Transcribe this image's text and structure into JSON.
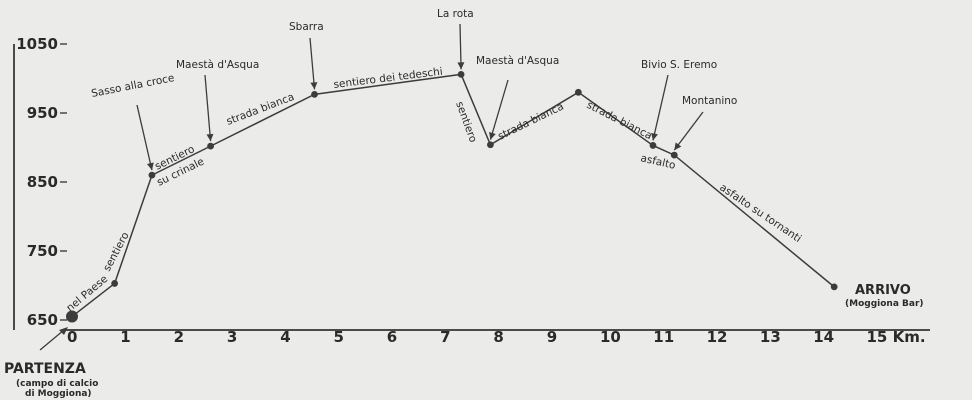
{
  "chart_data": {
    "type": "line",
    "xlabel": "",
    "ylabel": "",
    "x_unit": "Km.",
    "xlim": [
      0,
      15.6
    ],
    "ylim": [
      640,
      1070
    ],
    "x_ticks": [
      "0",
      "1",
      "2",
      "3",
      "4",
      "5",
      "6",
      "7",
      "8",
      "9",
      "10",
      "11",
      "12",
      "13",
      "14",
      "15 Km."
    ],
    "y_ticks": [
      "650",
      "750",
      "850",
      "950",
      "1050"
    ],
    "series": [
      {
        "points": [
          {
            "x": 0.0,
            "y": 655
          },
          {
            "x": 0.8,
            "y": 703
          },
          {
            "x": 1.5,
            "y": 860
          },
          {
            "x": 2.6,
            "y": 902
          },
          {
            "x": 4.55,
            "y": 977
          },
          {
            "x": 7.3,
            "y": 1006
          },
          {
            "x": 7.85,
            "y": 904
          },
          {
            "x": 9.5,
            "y": 980
          },
          {
            "x": 10.9,
            "y": 903
          },
          {
            "x": 11.3,
            "y": 889
          },
          {
            "x": 14.3,
            "y": 698
          }
        ]
      }
    ],
    "point_labels": [
      {
        "text": "Sasso alla croce",
        "x": 1.5,
        "y": 860
      },
      {
        "text": "Maestà d'Asqua",
        "x": 2.6,
        "y": 902
      },
      {
        "text": "Sbarra",
        "x": 4.55,
        "y": 977
      },
      {
        "text": "La rota",
        "x": 7.3,
        "y": 1006
      },
      {
        "text": "Maestà d'Asqua",
        "x": 7.85,
        "y": 904
      },
      {
        "text": "Bivio S. Eremo",
        "x": 10.9,
        "y": 903
      },
      {
        "text": "Montanino",
        "x": 11.3,
        "y": 889
      }
    ],
    "segment_labels": [
      {
        "text": "nel Paese",
        "segment": 0
      },
      {
        "text": "sentiero",
        "segment": 1
      },
      {
        "text": "sentiero",
        "segment": 2
      },
      {
        "text": "su crinale",
        "segment": 2
      },
      {
        "text": "strada bianca",
        "segment": 3
      },
      {
        "text": "sentiero dei tedeschi",
        "segment": 4
      },
      {
        "text": "sentiero",
        "segment": 5
      },
      {
        "text": "strada bianca",
        "segment": 6
      },
      {
        "text": "strada bianca",
        "segment": 7
      },
      {
        "text": "asfalto",
        "segment": 8
      },
      {
        "text": "asfalto su tornanti",
        "segment": 9
      }
    ],
    "start": {
      "title": "PARTENZA",
      "sub1": "(campo di calcio",
      "sub2": "di Moggiona)"
    },
    "end": {
      "title": "ARRIVO",
      "sub": "(Moggiona Bar)"
    }
  }
}
